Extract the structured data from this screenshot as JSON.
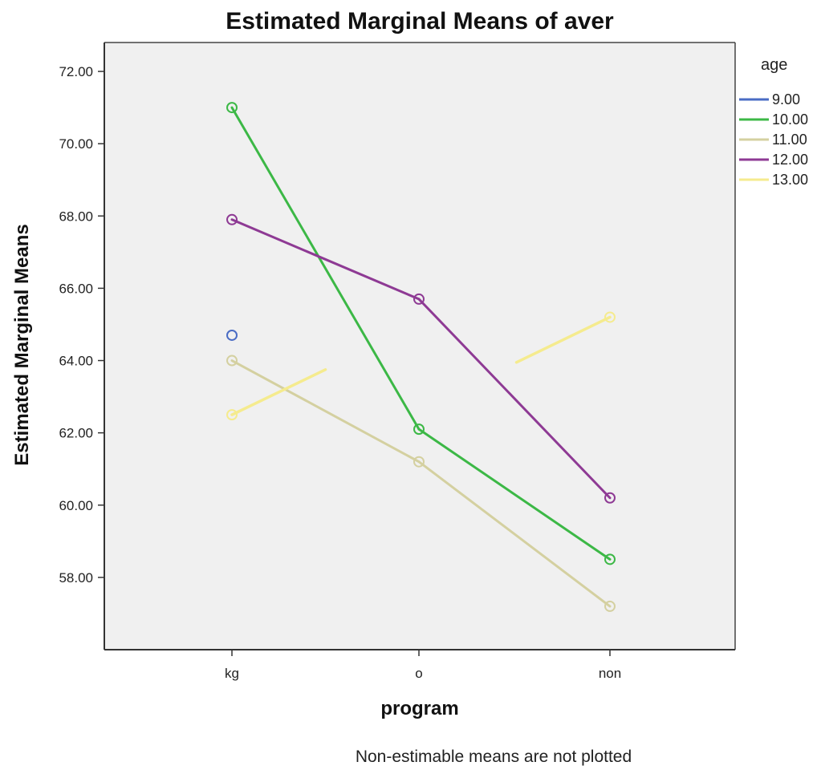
{
  "chart_data": {
    "type": "line",
    "title": "Estimated Marginal Means of aver",
    "xlabel": "program",
    "ylabel": "Estimated Marginal Means",
    "footnote": "Non-estimable means are not plotted",
    "categories": [
      "kg",
      "o",
      "non"
    ],
    "ylim": [
      56.0,
      72.8
    ],
    "yticks": [
      58.0,
      60.0,
      62.0,
      64.0,
      66.0,
      68.0,
      70.0,
      72.0
    ],
    "ytick_labels": [
      "58.00",
      "60.00",
      "62.00",
      "64.00",
      "66.00",
      "68.00",
      "70.00",
      "72.00"
    ],
    "grid": false,
    "legend": {
      "title": "age",
      "position": "right"
    },
    "series": [
      {
        "name": "9.00",
        "color": "#4a6cc4",
        "values": [
          64.7,
          null,
          null
        ]
      },
      {
        "name": "10.00",
        "color": "#3cb846",
        "values": [
          71.0,
          62.1,
          58.5
        ]
      },
      {
        "name": "11.00",
        "color": "#d4d0a0",
        "values": [
          64.0,
          61.2,
          57.2
        ]
      },
      {
        "name": "12.00",
        "color": "#8e3a94",
        "values": [
          67.9,
          65.7,
          60.2
        ]
      },
      {
        "name": "13.00",
        "color": "#f5eb8e",
        "values": [
          62.5,
          null,
          65.2
        ],
        "partial_segments": true
      }
    ]
  }
}
